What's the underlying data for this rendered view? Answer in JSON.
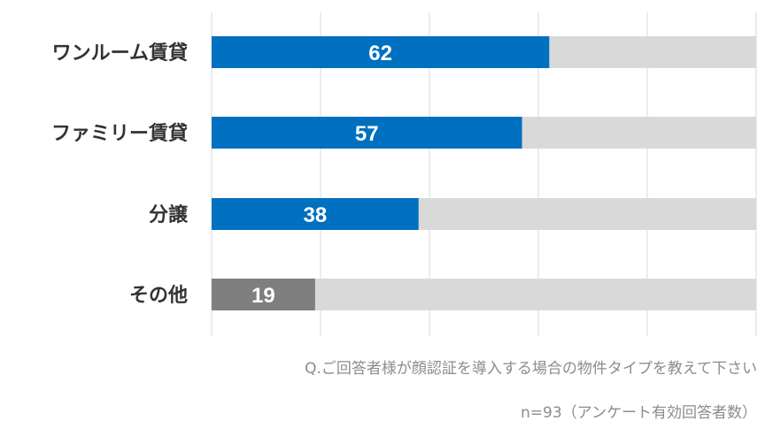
{
  "chart_data": {
    "type": "bar",
    "orientation": "horizontal",
    "categories": [
      "ワンルーム賃貸",
      "ファミリー賃貸",
      "分譲",
      "その他"
    ],
    "values": [
      62,
      57,
      38,
      19
    ],
    "xlim": [
      0,
      100
    ],
    "grid": true,
    "bar_colors": [
      "#0070c0",
      "#0070c0",
      "#0070c0",
      "#7f7f7f"
    ],
    "background_bar_color": "#d9d9d9",
    "gridline_color": "#d9d9d9",
    "label_color": "#333333",
    "value_label_color": "#ffffff"
  },
  "notes": {
    "question": "Q.ご回答者様が顔認証を導入する場合の物件タイプを教えて下さい",
    "sample": "n=93（アンケート有効回答者数）"
  }
}
